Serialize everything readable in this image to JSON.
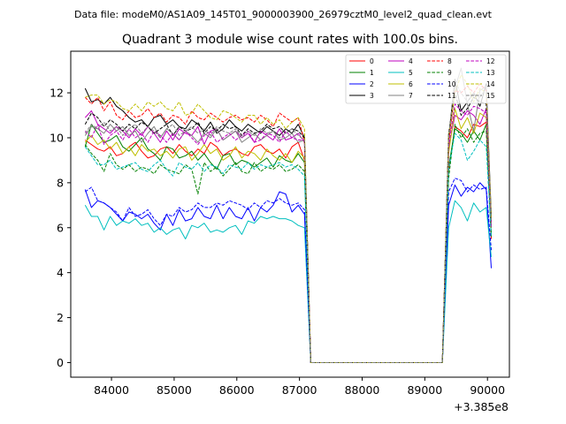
{
  "chart_data": {
    "type": "line",
    "suptitle": "Data file: modeM0/AS1A09_145T01_9000003900_26979cztM0_level2_quad_clean.evt",
    "title": "Quadrant 3 module wise count rates with 100.0s bins.",
    "xlabel": "",
    "ylabel": "",
    "x_offset_label": "+3.385e8",
    "xlim": [
      83350,
      90350
    ],
    "ylim": [
      -0.65,
      13.85
    ],
    "x_ticks": [
      84000,
      85000,
      86000,
      87000,
      88000,
      89000,
      90000
    ],
    "x_tick_labels": [
      "84000",
      "85000",
      "86000",
      "87000",
      "88000",
      "89000",
      "90000"
    ],
    "y_ticks": [
      0,
      2,
      4,
      6,
      8,
      10,
      12
    ],
    "y_tick_labels": [
      "0",
      "2",
      "4",
      "6",
      "8",
      "10",
      "12"
    ],
    "segment1": {
      "x_start": 83580,
      "step": 100,
      "count": 36
    },
    "gap": {
      "x": [
        87180,
        87280,
        87380,
        87480,
        87580,
        87680,
        87780,
        87880,
        87980,
        88080,
        88180,
        88280,
        88380,
        88480,
        88580,
        88680,
        88780,
        88880,
        88980,
        89080,
        89180,
        89280
      ],
      "value": 0
    },
    "segment2": {
      "x": [
        89280,
        89380,
        89480,
        89580,
        89680,
        89780,
        89880,
        89980,
        90060
      ]
    },
    "legend_position": "upper right",
    "series": [
      {
        "name": "0",
        "color": "#ff0000",
        "dash": "solid",
        "seg1": [
          9.9,
          9.7,
          9.5,
          9.4,
          9.6,
          9.2,
          9.3,
          9.6,
          9.8,
          9.4,
          9.1,
          9.2,
          9.5,
          9.6,
          9.3,
          9.7,
          9.4,
          9.2,
          9.5,
          9.3,
          9.8,
          9.6,
          9.2,
          9.4,
          9.5,
          9.3,
          9.2,
          9.6,
          9.7,
          9.4,
          9.3,
          9.5,
          9.1,
          9.6,
          9.8,
          9.0
        ],
        "seg2": [
          0.0,
          8.5,
          10.5,
          10.3,
          10.0,
          10.6,
          10.5,
          10.7,
          5.5
        ]
      },
      {
        "name": "1",
        "color": "#008000",
        "dash": "solid",
        "seg1": [
          9.6,
          10.6,
          10.2,
          9.8,
          9.9,
          10.1,
          9.6,
          9.4,
          9.7,
          10.0,
          9.5,
          9.3,
          9.0,
          9.6,
          9.5,
          9.1,
          9.2,
          9.4,
          9.0,
          9.3,
          8.9,
          8.6,
          9.2,
          9.3,
          8.8,
          9.0,
          8.9,
          8.7,
          8.9,
          9.1,
          8.7,
          9.2,
          9.0,
          8.9,
          9.3,
          8.9
        ],
        "seg2": [
          0.0,
          8.7,
          10.4,
          10.2,
          9.8,
          10.3,
          9.9,
          10.6,
          5.6
        ]
      },
      {
        "name": "2",
        "color": "#0000ff",
        "dash": "solid",
        "seg1": [
          7.7,
          6.9,
          7.2,
          7.1,
          6.9,
          6.6,
          6.3,
          6.7,
          6.6,
          6.4,
          6.6,
          6.2,
          5.9,
          6.6,
          6.1,
          6.8,
          6.3,
          6.4,
          6.9,
          6.5,
          6.4,
          7.0,
          6.4,
          6.9,
          6.5,
          6.4,
          6.9,
          6.3,
          6.9,
          6.7,
          7.0,
          7.6,
          7.5,
          6.7,
          7.0,
          6.6
        ],
        "seg2": [
          0.0,
          7.0,
          7.9,
          7.4,
          7.8,
          7.6,
          8.0,
          7.7,
          4.2
        ]
      },
      {
        "name": "3",
        "color": "#000000",
        "dash": "solid",
        "seg1": [
          12.2,
          11.6,
          11.7,
          11.5,
          11.8,
          11.4,
          11.2,
          10.9,
          10.7,
          10.8,
          10.5,
          10.9,
          11.0,
          10.6,
          10.8,
          10.5,
          10.4,
          10.8,
          10.6,
          10.3,
          10.7,
          10.2,
          10.4,
          10.8,
          10.5,
          10.3,
          10.6,
          10.4,
          10.2,
          10.5,
          10.3,
          10.1,
          10.4,
          10.2,
          10.6,
          10.0
        ],
        "seg2": [
          0.0,
          10.0,
          12.6,
          11.2,
          11.6,
          12.0,
          11.4,
          12.4,
          6.5
        ]
      },
      {
        "name": "4",
        "color": "#bf00bf",
        "dash": "solid",
        "seg1": [
          10.9,
          11.2,
          10.6,
          10.4,
          10.2,
          10.5,
          10.3,
          10.0,
          10.4,
          10.1,
          10.5,
          10.2,
          9.8,
          10.3,
          9.9,
          10.4,
          10.2,
          10.1,
          10.5,
          9.7,
          10.3,
          10.4,
          9.9,
          10.1,
          10.3,
          10.0,
          10.2,
          9.8,
          10.3,
          10.1,
          9.9,
          10.4,
          9.9,
          10.0,
          10.2,
          9.8
        ],
        "seg2": [
          0.0,
          9.5,
          11.0,
          10.8,
          11.2,
          11.0,
          10.6,
          11.3,
          6.0
        ]
      },
      {
        "name": "5",
        "color": "#00bfbf",
        "dash": "solid",
        "seg1": [
          7.0,
          6.5,
          6.5,
          5.9,
          6.5,
          6.1,
          6.3,
          6.2,
          6.4,
          6.1,
          6.2,
          5.8,
          6.0,
          5.7,
          5.9,
          6.0,
          5.5,
          6.1,
          6.0,
          6.2,
          5.8,
          5.9,
          5.8,
          6.0,
          6.1,
          5.7,
          6.3,
          6.2,
          6.5,
          6.4,
          6.5,
          6.4,
          6.4,
          6.3,
          6.1,
          6.0
        ],
        "seg2": [
          0.0,
          6.0,
          7.2,
          6.9,
          6.3,
          7.1,
          6.7,
          6.9,
          4.7
        ]
      },
      {
        "name": "6",
        "color": "#bfbf00",
        "dash": "solid",
        "seg1": [
          9.8,
          10.1,
          9.7,
          9.9,
          9.5,
          9.8,
          9.3,
          9.6,
          9.2,
          9.7,
          9.4,
          9.5,
          9.2,
          9.4,
          9.1,
          9.5,
          9.6,
          9.0,
          9.3,
          9.7,
          9.3,
          9.5,
          9.0,
          9.2,
          9.6,
          9.1,
          9.4,
          9.3,
          9.0,
          9.5,
          9.2,
          9.0,
          9.3,
          8.9,
          9.4,
          9.1
        ],
        "seg2": [
          0.0,
          9.3,
          11.3,
          10.4,
          10.9,
          10.2,
          11.1,
          10.9,
          6.0
        ]
      },
      {
        "name": "7",
        "color": "#808080",
        "dash": "solid",
        "seg1": [
          10.1,
          10.5,
          10.4,
          10.2,
          10.6,
          10.3,
          10.5,
          10.1,
          10.3,
          9.8,
          10.2,
          10.5,
          10.0,
          10.4,
          10.2,
          9.9,
          10.3,
          10.1,
          9.8,
          10.2,
          10.0,
          10.4,
          9.9,
          10.1,
          10.3,
          9.8,
          10.0,
          10.2,
          9.9,
          10.1,
          10.3,
          9.9,
          10.0,
          10.2,
          9.8,
          9.9
        ],
        "seg2": [
          0.0,
          9.8,
          12.2,
          13.1,
          11.5,
          10.3,
          12.1,
          12.3,
          6.2
        ]
      },
      {
        "name": "8",
        "color": "#ff0000",
        "dash": "dashed",
        "seg1": [
          11.8,
          11.5,
          11.8,
          11.2,
          11.6,
          11.0,
          10.8,
          11.2,
          10.9,
          11.0,
          11.3,
          10.9,
          11.1,
          10.7,
          11.0,
          10.9,
          10.6,
          11.2,
          10.9,
          10.8,
          11.1,
          10.9,
          10.7,
          10.9,
          11.0,
          10.8,
          10.9,
          10.7,
          11.0,
          10.8,
          10.5,
          11.1,
          10.9,
          10.7,
          10.9,
          9.8
        ],
        "seg2": [
          0.0,
          9.8,
          12.1,
          12.0,
          12.3,
          12.0,
          12.4,
          12.1,
          6.1
        ]
      },
      {
        "name": "9",
        "color": "#008000",
        "dash": "dashed",
        "seg1": [
          9.7,
          9.3,
          9.0,
          8.5,
          9.3,
          8.8,
          8.6,
          8.8,
          8.5,
          8.7,
          8.6,
          8.4,
          8.8,
          8.6,
          8.5,
          8.4,
          8.8,
          8.6,
          7.5,
          8.9,
          8.5,
          8.7,
          8.3,
          8.6,
          8.9,
          8.5,
          8.4,
          8.9,
          8.5,
          8.7,
          8.6,
          8.8,
          8.5,
          8.6,
          8.8,
          8.5
        ],
        "seg2": [
          0.0,
          8.2,
          10.6,
          10.0,
          10.4,
          9.8,
          10.2,
          10.3,
          5.7
        ]
      },
      {
        "name": "10",
        "color": "#0000ff",
        "dash": "dashed",
        "seg1": [
          7.6,
          7.8,
          7.2,
          7.1,
          6.9,
          6.7,
          6.3,
          6.9,
          6.5,
          6.6,
          6.8,
          6.4,
          6.1,
          6.6,
          6.5,
          6.9,
          6.7,
          6.8,
          7.1,
          6.9,
          6.9,
          7.1,
          7.0,
          7.2,
          7.1,
          7.0,
          6.8,
          7.1,
          6.9,
          7.2,
          7.1,
          7.3,
          7.1,
          7.0,
          7.1,
          6.8
        ],
        "seg2": [
          0.0,
          7.6,
          8.2,
          8.1,
          7.6,
          7.9,
          7.7,
          7.8,
          5.0
        ]
      },
      {
        "name": "11",
        "color": "#000000",
        "dash": "dashed",
        "seg1": [
          10.6,
          11.1,
          10.9,
          10.5,
          10.8,
          10.6,
          10.3,
          10.6,
          10.4,
          10.7,
          10.5,
          10.2,
          10.4,
          10.6,
          10.1,
          10.5,
          10.3,
          10.4,
          10.7,
          10.2,
          10.5,
          10.3,
          10.6,
          10.4,
          10.5,
          10.1,
          10.4,
          10.2,
          10.3,
          10.6,
          10.4,
          10.5,
          10.2,
          10.4,
          10.3,
          10.0
        ],
        "seg2": [
          0.0,
          10.2,
          12.0,
          11.0,
          11.3,
          11.8,
          11.6,
          11.5,
          6.3
        ]
      },
      {
        "name": "12",
        "color": "#bf00bf",
        "dash": "dashed",
        "seg1": [
          10.3,
          10.0,
          10.6,
          9.7,
          10.1,
          10.3,
          9.9,
          10.4,
          10.0,
          10.2,
          9.8,
          10.3,
          10.1,
          9.8,
          10.2,
          9.9,
          10.3,
          10.0,
          9.7,
          10.1,
          10.3,
          9.8,
          10.0,
          10.2,
          9.9,
          10.1,
          10.3,
          9.8,
          9.9,
          10.2,
          10.1,
          9.8,
          10.3,
          10.0,
          9.9,
          9.9
        ],
        "seg2": [
          0.0,
          9.6,
          11.5,
          11.2,
          11.0,
          11.4,
          11.3,
          11.1,
          6.0
        ]
      },
      {
        "name": "13",
        "color": "#00bfbf",
        "dash": "dashed",
        "seg1": [
          9.6,
          9.2,
          8.8,
          8.8,
          9.0,
          8.6,
          8.7,
          8.8,
          8.9,
          8.6,
          8.5,
          8.8,
          9.0,
          8.6,
          8.3,
          8.9,
          8.7,
          8.6,
          8.9,
          8.5,
          8.8,
          8.7,
          8.4,
          8.8,
          8.7,
          8.6,
          8.9,
          8.6,
          8.8,
          8.7,
          8.8,
          8.9,
          8.7,
          8.8,
          8.6,
          8.3
        ],
        "seg2": [
          0.0,
          8.6,
          10.2,
          9.9,
          9.0,
          9.4,
          9.9,
          9.6,
          5.6
        ]
      },
      {
        "name": "14",
        "color": "#bfbf00",
        "dash": "dashed",
        "seg1": [
          11.8,
          11.9,
          11.9,
          11.5,
          11.7,
          11.6,
          11.3,
          11.2,
          11.5,
          11.2,
          11.6,
          11.4,
          11.6,
          11.3,
          11.2,
          11.6,
          11.0,
          11.1,
          11.5,
          11.2,
          10.9,
          10.8,
          11.2,
          11.1,
          10.9,
          10.7,
          11.0,
          11.0,
          10.6,
          10.9,
          10.6,
          10.8,
          10.4,
          10.7,
          10.9,
          10.4
        ],
        "seg2": [
          0.0,
          10.1,
          12.0,
          12.8,
          12.4,
          11.6,
          12.2,
          12.0,
          6.4
        ]
      },
      {
        "name": "15",
        "color": "#808080",
        "dash": "dashed",
        "seg1": [
          10.2,
          10.6,
          10.4,
          10.7,
          10.3,
          10.5,
          10.1,
          10.4,
          10.6,
          10.2,
          10.5,
          10.3,
          10.0,
          10.4,
          10.6,
          10.1,
          10.3,
          10.5,
          10.2,
          10.4,
          10.1,
          10.5,
          10.3,
          10.2,
          10.4,
          10.0,
          10.3,
          10.1,
          10.4,
          10.2,
          10.3,
          10.0,
          10.2,
          10.4,
          10.1,
          9.9
        ],
        "seg2": [
          0.0,
          10.0,
          12.5,
          12.0,
          11.6,
          12.0,
          11.8,
          12.2,
          6.2
        ]
      }
    ]
  }
}
